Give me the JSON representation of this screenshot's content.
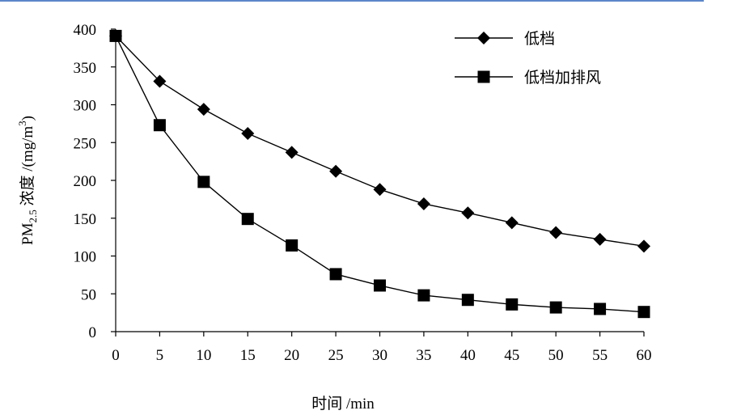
{
  "chart_data": {
    "type": "line",
    "x": [
      0,
      5,
      10,
      15,
      20,
      25,
      30,
      35,
      40,
      45,
      50,
      55,
      60
    ],
    "series": [
      {
        "name": "低档",
        "marker": "diamond",
        "values": [
          391,
          331,
          294,
          262,
          237,
          212,
          188,
          169,
          157,
          144,
          131,
          122,
          113
        ]
      },
      {
        "name": "低档加排风",
        "marker": "square",
        "values": [
          391,
          273,
          198,
          149,
          114,
          76,
          61,
          48,
          42,
          36,
          32,
          30,
          26
        ]
      }
    ],
    "xlim": [
      0,
      60
    ],
    "ylim": [
      0,
      400
    ],
    "x_ticks": [
      "0",
      "5",
      "10",
      "15",
      "20",
      "25",
      "30",
      "35",
      "40",
      "45",
      "50",
      "55",
      "60"
    ],
    "y_ticks": [
      "0",
      "50",
      "100",
      "150",
      "200",
      "250",
      "300",
      "350",
      "400"
    ],
    "xlabel": "时间 /min",
    "ylabel": {
      "prefix": "PM",
      "sub": "2.5",
      "middle": " 浓度 /(mg/m",
      "sup": "3",
      "suffix": ")"
    },
    "grid": false,
    "legend_position": "top-right",
    "colors": {
      "line": "#000000",
      "marker": "#000000",
      "accent_rule": "#5b86c9"
    }
  }
}
